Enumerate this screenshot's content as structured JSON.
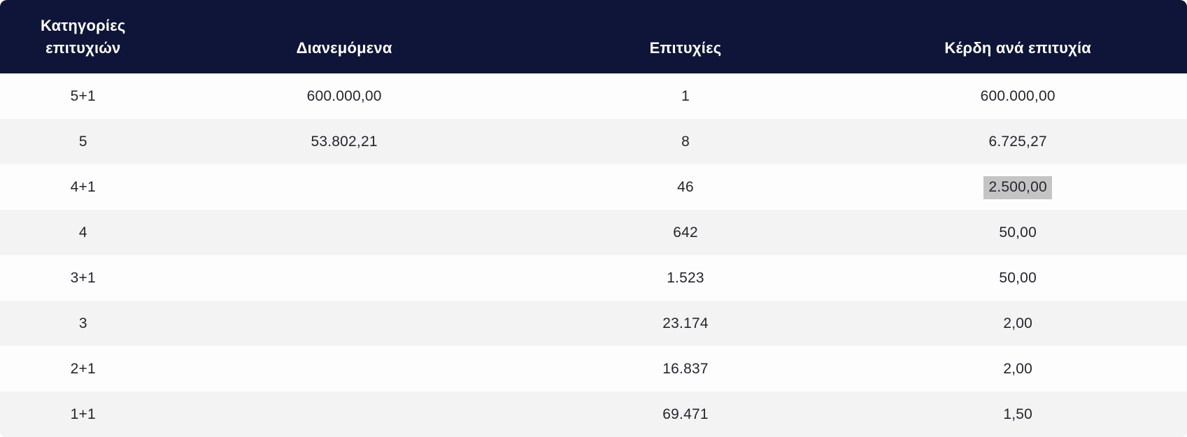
{
  "table": {
    "columns": [
      {
        "label": "Κατηγορίες επιτυχιών"
      },
      {
        "label": "Διανεμόμενα"
      },
      {
        "label": "Επιτυχίες"
      },
      {
        "label": "Κέρδη ανά επιτυχία"
      }
    ],
    "rows": [
      {
        "category": "5+1",
        "distributed": "600.000,00",
        "winners": "1",
        "prize": "600.000,00",
        "prize_selected": false
      },
      {
        "category": "5",
        "distributed": "53.802,21",
        "winners": "8",
        "prize": "6.725,27",
        "prize_selected": false
      },
      {
        "category": "4+1",
        "distributed": "",
        "winners": "46",
        "prize": "2.500,00",
        "prize_selected": true
      },
      {
        "category": "4",
        "distributed": "",
        "winners": "642",
        "prize": "50,00",
        "prize_selected": false
      },
      {
        "category": "3+1",
        "distributed": "",
        "winners": "1.523",
        "prize": "50,00",
        "prize_selected": false
      },
      {
        "category": "3",
        "distributed": "",
        "winners": "23.174",
        "prize": "2,00",
        "prize_selected": false
      },
      {
        "category": "2+1",
        "distributed": "",
        "winners": "16.837",
        "prize": "2,00",
        "prize_selected": false
      },
      {
        "category": "1+1",
        "distributed": "",
        "winners": "69.471",
        "prize": "1,50",
        "prize_selected": false
      }
    ]
  },
  "colors": {
    "header_bg": "#0e1538",
    "header_text": "#ffffff",
    "row_bg": "#fdfdfe",
    "row_alt_bg": "#f3f3f4",
    "body_text": "#26262b",
    "selection_bg": "#c4c4c4"
  }
}
